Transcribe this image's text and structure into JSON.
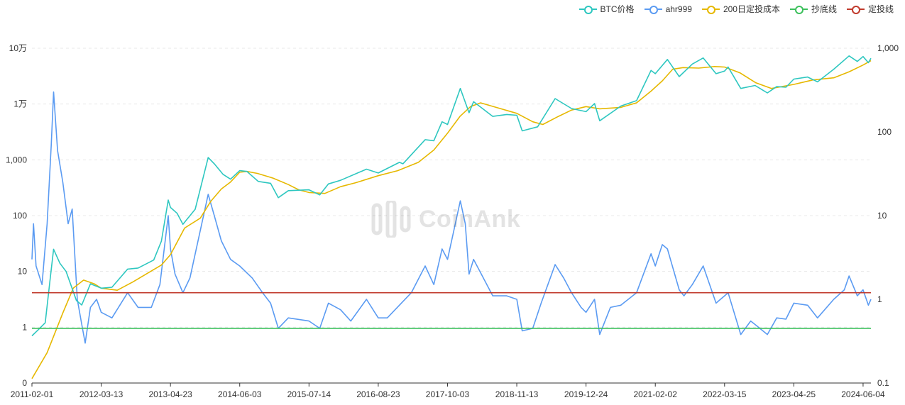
{
  "legend": [
    {
      "label": "BTC价格",
      "color": "#2ec7c0"
    },
    {
      "label": "ahr999",
      "color": "#5b9bf2"
    },
    {
      "label": "200日定投成本",
      "color": "#e6b800"
    },
    {
      "label": "抄底线",
      "color": "#3cc05c"
    },
    {
      "label": "定投线",
      "color": "#c0392b"
    }
  ],
  "watermark": {
    "text": "CoinAnk"
  },
  "chart_data": {
    "type": "line",
    "x_range": [
      "2011-02-01",
      "2024-07-20"
    ],
    "x_ticks": [
      "2011-02-01",
      "2012-03-13",
      "2013-04-23",
      "2014-06-03",
      "2015-07-14",
      "2016-08-23",
      "2017-10-03",
      "2018-11-13",
      "2019-12-24",
      "2021-02-02",
      "2022-03-15",
      "2023-04-25",
      "2024-06-04"
    ],
    "y_left": {
      "scale": "log",
      "range": [
        0.1,
        100000
      ],
      "ticks": [
        0.1,
        1,
        10,
        100,
        1000,
        10000,
        100000
      ],
      "tick_labels": [
        "0",
        "1",
        "10",
        "100",
        "1,000",
        "1万",
        "10万"
      ]
    },
    "y_right": {
      "scale": "log",
      "range": [
        0.1,
        1000
      ],
      "ticks": [
        0.1,
        1,
        10,
        100,
        1000
      ],
      "tick_labels": [
        "0.1",
        "1",
        "10",
        "100",
        "1,000"
      ]
    },
    "grid": true,
    "legend_position": "top-right",
    "series": [
      {
        "name": "BTC价格",
        "axis": "left",
        "color": "#2ec7c0",
        "points": [
          [
            "2011-02-01",
            0.7
          ],
          [
            "2011-03-10",
            0.9
          ],
          [
            "2011-04-20",
            1.2
          ],
          [
            "2011-05-20",
            8
          ],
          [
            "2011-06-08",
            25
          ],
          [
            "2011-07-15",
            14
          ],
          [
            "2011-08-20",
            10
          ],
          [
            "2011-10-20",
            3
          ],
          [
            "2011-11-20",
            2.5
          ],
          [
            "2012-01-10",
            6
          ],
          [
            "2012-03-13",
            5
          ],
          [
            "2012-05-15",
            5.2
          ],
          [
            "2012-08-15",
            11
          ],
          [
            "2012-10-15",
            11.5
          ],
          [
            "2013-01-15",
            16
          ],
          [
            "2013-03-01",
            35
          ],
          [
            "2013-04-10",
            190
          ],
          [
            "2013-04-23",
            140
          ],
          [
            "2013-06-01",
            110
          ],
          [
            "2013-07-05",
            70
          ],
          [
            "2013-09-15",
            130
          ],
          [
            "2013-11-30",
            1100
          ],
          [
            "2014-01-05",
            850
          ],
          [
            "2014-02-25",
            550
          ],
          [
            "2014-04-10",
            450
          ],
          [
            "2014-06-03",
            640
          ],
          [
            "2014-07-15",
            620
          ],
          [
            "2014-09-20",
            410
          ],
          [
            "2014-12-01",
            380
          ],
          [
            "2015-01-15",
            210
          ],
          [
            "2015-03-15",
            280
          ],
          [
            "2015-07-14",
            290
          ],
          [
            "2015-09-15",
            235
          ],
          [
            "2015-11-05",
            370
          ],
          [
            "2016-01-15",
            430
          ],
          [
            "2016-06-15",
            680
          ],
          [
            "2016-08-23",
            580
          ],
          [
            "2016-12-25",
            900
          ],
          [
            "2017-01-15",
            850
          ],
          [
            "2017-05-25",
            2300
          ],
          [
            "2017-07-15",
            2200
          ],
          [
            "2017-09-01",
            4800
          ],
          [
            "2017-10-03",
            4300
          ],
          [
            "2017-12-17",
            19000
          ],
          [
            "2018-02-06",
            7000
          ],
          [
            "2018-03-05",
            11000
          ],
          [
            "2018-06-25",
            6000
          ],
          [
            "2018-09-15",
            6500
          ],
          [
            "2018-11-13",
            6300
          ],
          [
            "2018-12-15",
            3300
          ],
          [
            "2019-03-15",
            3900
          ],
          [
            "2019-06-26",
            12500
          ],
          [
            "2019-09-30",
            8300
          ],
          [
            "2019-12-24",
            7300
          ],
          [
            "2020-02-12",
            10200
          ],
          [
            "2020-03-13",
            5000
          ],
          [
            "2020-07-15",
            9200
          ],
          [
            "2020-10-15",
            11500
          ],
          [
            "2021-01-08",
            40000
          ],
          [
            "2021-02-02",
            35000
          ],
          [
            "2021-04-14",
            63000
          ],
          [
            "2021-06-22",
            31000
          ],
          [
            "2021-09-07",
            52000
          ],
          [
            "2021-11-10",
            67000
          ],
          [
            "2022-01-24",
            35000
          ],
          [
            "2022-03-15",
            39000
          ],
          [
            "2022-04-05",
            46000
          ],
          [
            "2022-06-18",
            19000
          ],
          [
            "2022-09-10",
            21500
          ],
          [
            "2022-11-21",
            15800
          ],
          [
            "2023-01-15",
            20500
          ],
          [
            "2023-03-10",
            20000
          ],
          [
            "2023-04-25",
            28000
          ],
          [
            "2023-07-15",
            30500
          ],
          [
            "2023-09-11",
            25000
          ],
          [
            "2023-12-15",
            42000
          ],
          [
            "2024-03-14",
            73000
          ],
          [
            "2024-05-01",
            58000
          ],
          [
            "2024-06-04",
            71000
          ],
          [
            "2024-07-05",
            55000
          ],
          [
            "2024-07-20",
            66000
          ]
        ]
      },
      {
        "name": "ahr999",
        "axis": "right",
        "color": "#5b9bf2",
        "points": [
          [
            "2011-02-01",
            3
          ],
          [
            "2011-02-10",
            8
          ],
          [
            "2011-02-25",
            2.5
          ],
          [
            "2011-04-01",
            1.5
          ],
          [
            "2011-05-01",
            8
          ],
          [
            "2011-05-25",
            70
          ],
          [
            "2011-06-08",
            300
          ],
          [
            "2011-07-01",
            60
          ],
          [
            "2011-08-01",
            25
          ],
          [
            "2011-09-01",
            8
          ],
          [
            "2011-09-25",
            12
          ],
          [
            "2011-10-25",
            1
          ],
          [
            "2011-11-20",
            0.5
          ],
          [
            "2011-12-10",
            0.3
          ],
          [
            "2012-01-10",
            0.8
          ],
          [
            "2012-02-15",
            1
          ],
          [
            "2012-03-13",
            0.7
          ],
          [
            "2012-05-15",
            0.6
          ],
          [
            "2012-08-15",
            1.2
          ],
          [
            "2012-10-15",
            0.8
          ],
          [
            "2013-01-01",
            0.8
          ],
          [
            "2013-02-20",
            1.5
          ],
          [
            "2013-04-10",
            10
          ],
          [
            "2013-04-23",
            4
          ],
          [
            "2013-05-20",
            2
          ],
          [
            "2013-07-05",
            1.2
          ],
          [
            "2013-08-15",
            1.8
          ],
          [
            "2013-11-30",
            18
          ],
          [
            "2014-01-05",
            10
          ],
          [
            "2014-02-15",
            5
          ],
          [
            "2014-04-10",
            3
          ],
          [
            "2014-06-03",
            2.5
          ],
          [
            "2014-08-15",
            1.8
          ],
          [
            "2014-10-15",
            1.2
          ],
          [
            "2014-12-01",
            0.9
          ],
          [
            "2015-01-15",
            0.45
          ],
          [
            "2015-03-15",
            0.6
          ],
          [
            "2015-07-14",
            0.55
          ],
          [
            "2015-09-15",
            0.45
          ],
          [
            "2015-11-05",
            0.9
          ],
          [
            "2016-01-15",
            0.75
          ],
          [
            "2016-03-15",
            0.55
          ],
          [
            "2016-06-15",
            1
          ],
          [
            "2016-08-23",
            0.6
          ],
          [
            "2016-10-15",
            0.6
          ],
          [
            "2016-12-25",
            0.85
          ],
          [
            "2017-03-05",
            1.2
          ],
          [
            "2017-05-25",
            2.5
          ],
          [
            "2017-07-15",
            1.5
          ],
          [
            "2017-09-01",
            4
          ],
          [
            "2017-10-03",
            3
          ],
          [
            "2017-12-17",
            15
          ],
          [
            "2018-01-15",
            8
          ],
          [
            "2018-02-06",
            2
          ],
          [
            "2018-03-05",
            3
          ],
          [
            "2018-06-25",
            1.1
          ],
          [
            "2018-09-15",
            1.1
          ],
          [
            "2018-11-13",
            1
          ],
          [
            "2018-12-15",
            0.42
          ],
          [
            "2019-02-15",
            0.45
          ],
          [
            "2019-04-05",
            0.9
          ],
          [
            "2019-06-26",
            2.6
          ],
          [
            "2019-08-15",
            1.8
          ],
          [
            "2019-09-30",
            1.2
          ],
          [
            "2019-11-25",
            0.8
          ],
          [
            "2019-12-24",
            0.7
          ],
          [
            "2020-02-12",
            1
          ],
          [
            "2020-03-13",
            0.38
          ],
          [
            "2020-05-15",
            0.8
          ],
          [
            "2020-07-15",
            0.85
          ],
          [
            "2020-10-15",
            1.2
          ],
          [
            "2021-01-08",
            3.5
          ],
          [
            "2021-02-02",
            2.5
          ],
          [
            "2021-03-15",
            4.5
          ],
          [
            "2021-04-14",
            4
          ],
          [
            "2021-06-22",
            1.3
          ],
          [
            "2021-07-20",
            1.1
          ],
          [
            "2021-09-07",
            1.5
          ],
          [
            "2021-11-10",
            2.5
          ],
          [
            "2022-01-24",
            0.9
          ],
          [
            "2022-03-15",
            1.1
          ],
          [
            "2022-04-05",
            1.2
          ],
          [
            "2022-06-18",
            0.38
          ],
          [
            "2022-08-15",
            0.55
          ],
          [
            "2022-09-10",
            0.5
          ],
          [
            "2022-11-21",
            0.38
          ],
          [
            "2023-01-15",
            0.6
          ],
          [
            "2023-03-10",
            0.58
          ],
          [
            "2023-04-25",
            0.9
          ],
          [
            "2023-07-15",
            0.85
          ],
          [
            "2023-09-11",
            0.6
          ],
          [
            "2023-12-15",
            1
          ],
          [
            "2024-02-15",
            1.3
          ],
          [
            "2024-03-14",
            1.9
          ],
          [
            "2024-05-01",
            1.1
          ],
          [
            "2024-06-04",
            1.3
          ],
          [
            "2024-07-05",
            0.85
          ],
          [
            "2024-07-20",
            1
          ]
        ]
      },
      {
        "name": "200日定投成本",
        "axis": "left",
        "color": "#e6b800",
        "points": [
          [
            "2011-02-01",
            0.12
          ],
          [
            "2011-05-01",
            0.35
          ],
          [
            "2011-08-01",
            1.8
          ],
          [
            "2011-10-01",
            5
          ],
          [
            "2011-12-01",
            7
          ],
          [
            "2012-02-01",
            6
          ],
          [
            "2012-03-13",
            5
          ],
          [
            "2012-06-15",
            4.6
          ],
          [
            "2012-09-15",
            6.5
          ],
          [
            "2012-12-15",
            9.5
          ],
          [
            "2013-03-01",
            13
          ],
          [
            "2013-04-23",
            20
          ],
          [
            "2013-07-15",
            60
          ],
          [
            "2013-10-15",
            90
          ],
          [
            "2013-12-15",
            180
          ],
          [
            "2014-02-15",
            300
          ],
          [
            "2014-04-10",
            400
          ],
          [
            "2014-06-03",
            600
          ],
          [
            "2014-07-15",
            620
          ],
          [
            "2014-09-15",
            570
          ],
          [
            "2014-12-15",
            470
          ],
          [
            "2015-03-15",
            360
          ],
          [
            "2015-05-15",
            290
          ],
          [
            "2015-07-14",
            260
          ],
          [
            "2015-10-15",
            250
          ],
          [
            "2016-01-15",
            330
          ],
          [
            "2016-04-15",
            390
          ],
          [
            "2016-08-23",
            520
          ],
          [
            "2016-12-15",
            640
          ],
          [
            "2017-04-15",
            900
          ],
          [
            "2017-07-15",
            1500
          ],
          [
            "2017-10-03",
            3000
          ],
          [
            "2017-12-15",
            6000
          ],
          [
            "2018-02-15",
            9000
          ],
          [
            "2018-04-15",
            10500
          ],
          [
            "2018-07-15",
            8700
          ],
          [
            "2018-11-13",
            6800
          ],
          [
            "2019-02-15",
            4800
          ],
          [
            "2019-04-15",
            4300
          ],
          [
            "2019-07-15",
            6000
          ],
          [
            "2019-09-30",
            7800
          ],
          [
            "2019-12-24",
            9000
          ],
          [
            "2020-03-13",
            8200
          ],
          [
            "2020-07-15",
            8700
          ],
          [
            "2020-10-15",
            10500
          ],
          [
            "2021-01-08",
            17000
          ],
          [
            "2021-03-15",
            26000
          ],
          [
            "2021-05-15",
            42000
          ],
          [
            "2021-07-15",
            45000
          ],
          [
            "2021-10-15",
            44000
          ],
          [
            "2022-01-15",
            47000
          ],
          [
            "2022-03-15",
            46000
          ],
          [
            "2022-06-15",
            36000
          ],
          [
            "2022-09-15",
            24000
          ],
          [
            "2022-12-15",
            19000
          ],
          [
            "2023-04-25",
            22500
          ],
          [
            "2023-08-15",
            27000
          ],
          [
            "2023-12-15",
            29500
          ],
          [
            "2024-03-15",
            38000
          ],
          [
            "2024-06-04",
            50000
          ],
          [
            "2024-07-20",
            60000
          ]
        ]
      },
      {
        "name": "抄底线",
        "axis": "right",
        "color": "#3cc05c",
        "value": 0.45
      },
      {
        "name": "定投线",
        "axis": "right",
        "color": "#c0392b",
        "value": 1.2
      }
    ]
  }
}
